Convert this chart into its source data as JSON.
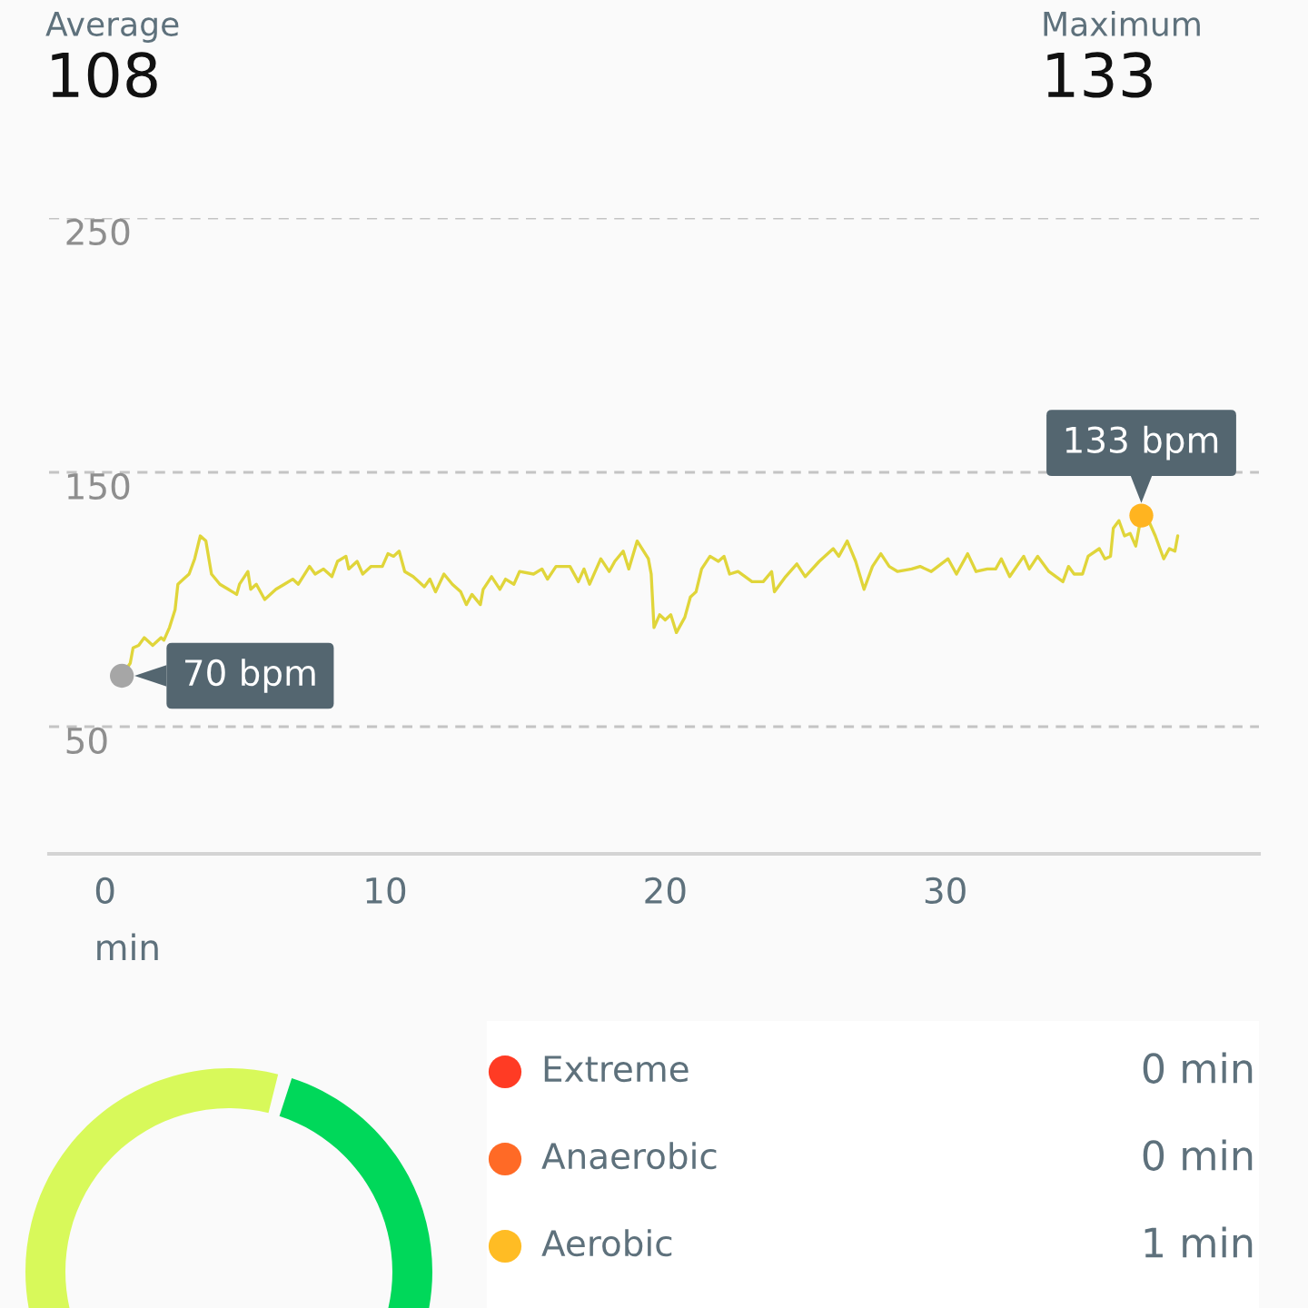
{
  "chart_data": [
    {
      "type": "line",
      "annotations": [
        "Average",
        "108",
        "Maximum",
        "133",
        {
          "text": "70 bpm",
          "x": 0.6,
          "y": 70
        },
        {
          "text": "133 bpm",
          "x": 37.0,
          "y": 133
        }
      ],
      "xlabel": "min",
      "x": [
        0.6,
        0.9,
        1.0,
        1.2,
        1.4,
        1.7,
        2.0,
        2.1,
        2.3,
        2.5,
        2.6,
        2.8,
        3.0,
        3.2,
        3.4,
        3.6,
        3.8,
        4.1,
        4.4,
        4.7,
        4.8,
        5.1,
        5.2,
        5.4,
        5.7,
        6.1,
        6.4,
        6.7,
        6.9,
        7.3,
        7.5,
        7.8,
        8.1,
        8.3,
        8.6,
        8.7,
        9.0,
        9.2,
        9.5,
        9.9,
        10.1,
        10.3,
        10.5,
        10.7,
        11.0,
        11.4,
        11.6,
        11.8,
        12.1,
        12.4,
        12.7,
        12.9,
        13.1,
        13.4,
        13.5,
        13.8,
        14.1,
        14.3,
        14.6,
        14.8,
        15.3,
        15.6,
        15.8,
        16.1,
        16.6,
        16.9,
        17.1,
        17.3,
        17.7,
        18.0,
        18.2,
        18.5,
        18.7,
        19.0,
        19.4,
        19.5,
        19.6,
        19.8,
        20.0,
        20.2,
        20.4,
        20.7,
        20.9,
        21.1,
        21.3,
        21.6,
        21.9,
        22.1,
        22.3,
        22.6,
        23.1,
        23.5,
        23.8,
        23.9,
        24.3,
        24.7,
        25.0,
        25.5,
        26.0,
        26.2,
        26.5,
        26.8,
        27.1,
        27.4,
        27.7,
        28.0,
        28.3,
        28.8,
        29.1,
        29.5,
        30.1,
        30.4,
        30.8,
        31.1,
        31.5,
        31.8,
        32.0,
        32.3,
        32.8,
        33.0,
        33.3,
        33.7,
        34.2,
        34.4,
        34.6,
        34.9,
        35.1,
        35.5,
        35.7,
        35.9,
        36.0,
        36.2,
        36.4,
        36.6,
        36.8,
        37.0,
        37.3,
        37.5,
        37.8,
        38.0,
        38.2,
        38.3
      ],
      "values": [
        70,
        75,
        81,
        82,
        85,
        82,
        85,
        84,
        89,
        96,
        106,
        108,
        110,
        116,
        125,
        123,
        110,
        106,
        104,
        102,
        106,
        111,
        104,
        106,
        100,
        104,
        106,
        108,
        106,
        113,
        110,
        112,
        109,
        115,
        117,
        112,
        115,
        110,
        113,
        113,
        118,
        117,
        119,
        111,
        109,
        105,
        108,
        103,
        110,
        106,
        103,
        98,
        102,
        98,
        104,
        109,
        104,
        108,
        106,
        111,
        110,
        112,
        108,
        113,
        113,
        107,
        112,
        106,
        116,
        111,
        115,
        119,
        112,
        123,
        116,
        110,
        89,
        94,
        92,
        94,
        87,
        93,
        101,
        103,
        112,
        117,
        115,
        117,
        110,
        111,
        107,
        107,
        111,
        103,
        109,
        114,
        109,
        115,
        120,
        117,
        123,
        115,
        104,
        113,
        118,
        113,
        111,
        112,
        113,
        111,
        116,
        110,
        118,
        111,
        112,
        112,
        116,
        109,
        117,
        112,
        117,
        111,
        107,
        113,
        110,
        110,
        117,
        120,
        116,
        117,
        128,
        131,
        125,
        126,
        121,
        133,
        130,
        125,
        116,
        120,
        119,
        125
      ],
      "color": "#e0d53a",
      "xlim": [
        -2,
        41.2
      ],
      "xticks": [
        0,
        10,
        20,
        30
      ],
      "ylim": [
        0,
        250
      ],
      "yticks": [
        50,
        150,
        250
      ],
      "grid": "y"
    },
    {
      "type": "other",
      "annotations": [
        "Extreme",
        "0 min",
        "Anaerobic",
        "0 min",
        "Aerobic",
        "1 min"
      ],
      "colors": [
        "#ff3b24",
        "#ff6a26",
        "#ffbc24"
      ]
    }
  ]
}
